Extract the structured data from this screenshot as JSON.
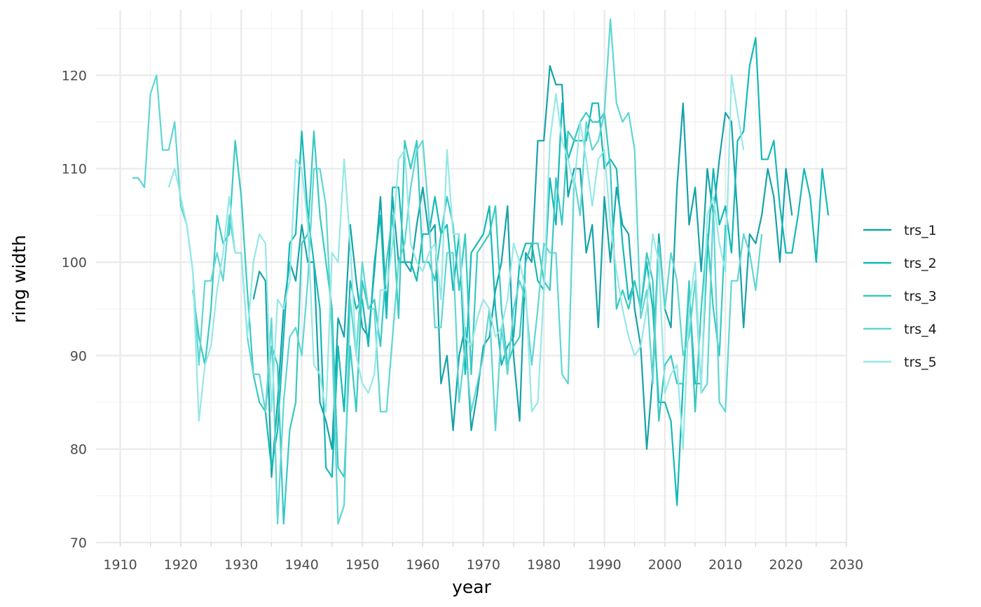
{
  "chart_data": {
    "type": "line",
    "title": "",
    "xlabel": "year",
    "ylabel": "ring width",
    "xlim": [
      1906,
      2030
    ],
    "ylim": [
      70,
      127
    ],
    "x_major_ticks": [
      1910,
      1920,
      1930,
      1940,
      1950,
      1960,
      1970,
      1980,
      1990,
      2000,
      2010,
      2020,
      2030
    ],
    "x_minor_ticks": [
      1915,
      1925,
      1935,
      1945,
      1955,
      1965,
      1975,
      1985,
      1995,
      2005,
      2015,
      2025
    ],
    "y_major_ticks": [
      70,
      80,
      90,
      100,
      110,
      120
    ],
    "y_minor_ticks": [
      75,
      85,
      95,
      105,
      115,
      125
    ],
    "grid": true,
    "legend": "right",
    "series": [
      {
        "name": "trs_1",
        "color": "#17A2A8",
        "start": 1932,
        "values": [
          96,
          99,
          98,
          77,
          85,
          95,
          100,
          98,
          104,
          100,
          100,
          85,
          83,
          80,
          94,
          92,
          104,
          98,
          93,
          92,
          99,
          107,
          95,
          107,
          100,
          100,
          99,
          104,
          108,
          103,
          104,
          87,
          90,
          82,
          90,
          93,
          82,
          86,
          91,
          92,
          97,
          100,
          106,
          90,
          83,
          101,
          100,
          113,
          113,
          121,
          119,
          119,
          107,
          110,
          110,
          101,
          104,
          93,
          107,
          100,
          108,
          104,
          103,
          95,
          91,
          80,
          88,
          103,
          95,
          93,
          108,
          117,
          104,
          108,
          99,
          110,
          105,
          111,
          116,
          115,
          105,
          93,
          103,
          102,
          105,
          110,
          107,
          100,
          110,
          105
        ]
      },
      {
        "name": "trs_2",
        "color": "#13B9B7",
        "start": 1934,
        "values": [
          84,
          78,
          82,
          92,
          102,
          103,
          114,
          105,
          100,
          95,
          78,
          77,
          91,
          84,
          98,
          95,
          96,
          91,
          100,
          105,
          94,
          108,
          108,
          100,
          100,
          98,
          103,
          103,
          107,
          103,
          104,
          97,
          103,
          88,
          101,
          102,
          103,
          106,
          95,
          89,
          91,
          92,
          100,
          102,
          102,
          98,
          97,
          109,
          104,
          117,
          111,
          113,
          113,
          113,
          117,
          117,
          110,
          111,
          110,
          102,
          96,
          98,
          95,
          100,
          95,
          85,
          85,
          83,
          74,
          87,
          97,
          87,
          87,
          101,
          110,
          104,
          106,
          101,
          113,
          114,
          121,
          124,
          111,
          111,
          113,
          106,
          101,
          101,
          105,
          110,
          107,
          100,
          110,
          105
        ]
      },
      {
        "name": "trs_3",
        "color": "#38C9C2",
        "start": 1922,
        "values": [
          97,
          92,
          89,
          95,
          105,
          102,
          103,
          113,
          107,
          97,
          88,
          85,
          84,
          91,
          89,
          72,
          82,
          85,
          102,
          103,
          114,
          105,
          100,
          95,
          78,
          77,
          91,
          84,
          98,
          95,
          96,
          91,
          100,
          105,
          94,
          113,
          110,
          113,
          100,
          100,
          98,
          103,
          107,
          104,
          97,
          103,
          88,
          101,
          102,
          103,
          106,
          95,
          89,
          91,
          92,
          100,
          102,
          102,
          98,
          97,
          109,
          104,
          114,
          113,
          115,
          116,
          115,
          115,
          116,
          110,
          95,
          97,
          95,
          98,
          95,
          101,
          98,
          83,
          89,
          90,
          87,
          87,
          98,
          84,
          95,
          103,
          95,
          90,
          104
        ]
      },
      {
        "name": "trs_4",
        "color": "#5FD6D2",
        "start": 1912,
        "values": [
          109,
          109,
          108,
          118,
          120,
          112,
          112,
          115,
          106,
          104,
          99,
          89,
          98,
          98,
          101,
          98,
          105,
          101,
          101,
          92,
          88,
          88,
          84,
          94,
          72,
          85,
          92,
          93,
          90,
          98,
          110,
          110,
          106,
          92,
          72,
          74,
          96,
          90,
          100,
          95,
          95,
          84,
          84,
          92,
          100,
          102,
          108,
          112,
          113,
          105,
          93,
          93,
          101,
          101,
          85,
          91,
          84,
          87,
          90,
          95,
          82,
          93,
          88,
          95,
          98,
          96,
          89,
          95,
          102,
          101,
          101,
          88,
          87,
          109,
          105,
          115,
          112,
          113,
          116,
          126,
          117,
          115,
          116,
          112,
          94,
          97,
          87,
          102,
          95,
          101,
          98,
          90,
          92,
          98,
          86,
          87,
          106,
          85,
          84,
          98,
          98,
          103,
          101,
          97,
          103
        ]
      },
      {
        "name": "trs_5",
        "color": "#96E8E6",
        "start": 1918,
        "values": [
          108,
          110,
          107,
          104,
          99,
          83,
          89,
          91,
          97,
          101,
          107,
          101,
          101,
          92,
          100,
          103,
          102,
          84,
          96,
          95,
          98,
          111,
          110,
          104,
          89,
          88,
          84,
          101,
          100,
          111,
          102,
          90,
          87,
          86,
          88,
          97,
          97,
          102,
          111,
          112,
          102,
          100,
          99,
          101,
          102,
          96,
          112,
          103,
          103,
          92,
          91,
          94,
          96,
          95,
          92,
          93,
          96,
          102,
          100,
          97,
          84,
          85,
          97,
          113,
          118,
          113,
          111,
          108,
          115,
          111,
          106,
          111,
          112,
          104,
          99,
          95,
          92,
          90,
          91,
          95,
          103,
          100,
          86,
          88,
          89,
          80,
          95,
          100,
          86,
          105,
          107,
          102,
          99,
          120,
          116,
          112
        ]
      }
    ]
  }
}
